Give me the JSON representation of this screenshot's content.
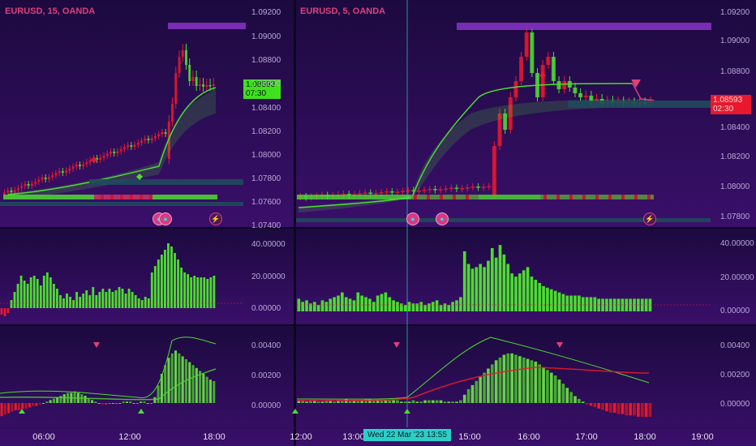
{
  "colors": {
    "background_top": "#1c0a3f",
    "background_bottom": "#3a0f6a",
    "bull": "#4cdc30",
    "bear": "#e8182e",
    "accent_pink": "#e0407a",
    "cursor": "#2ad0c8",
    "zone_purple": "#8a34c8",
    "zone_teal": "#1f4a5c"
  },
  "left_chart": {
    "title": "EURUSD, 15, OANDA",
    "price_label": "1.08593",
    "countdown": "07:30",
    "y_ticks": [
      "1.09200",
      "1.09000",
      "1.08800",
      "1.08600",
      "1.08400",
      "1.08200",
      "1.08000",
      "1.07800",
      "1.07600",
      "1.07400"
    ],
    "x_ticks": [
      "06:00",
      "12:00",
      "18:00"
    ],
    "volume_ticks": [
      "40.00000",
      "20.00000",
      "0.00000"
    ],
    "macd_ticks": [
      "0.00400",
      "0.00200",
      "0.00000"
    ],
    "volume_bars": [
      -4,
      -5,
      -3,
      5,
      10,
      15,
      20,
      17,
      15,
      19,
      20,
      18,
      14,
      20,
      22,
      19,
      15,
      12,
      8,
      6,
      9,
      7,
      5,
      10,
      7,
      9,
      11,
      8,
      13,
      8,
      10,
      12,
      10,
      12,
      10,
      11,
      13,
      12,
      9,
      12,
      10,
      8,
      6,
      5,
      7,
      6,
      22,
      26,
      30,
      33,
      36,
      40,
      38,
      34,
      30,
      25,
      22,
      21,
      19,
      20,
      19,
      19,
      19,
      18,
      19,
      20
    ],
    "macd_hist": [
      -0.0009,
      -0.0008,
      -0.0007,
      -0.0006,
      -0.0005,
      -0.0005,
      -0.0004,
      -0.0004,
      -0.0003,
      -0.0002,
      -0.0002,
      -0.0001,
      0.0,
      0.0001,
      0.0002,
      0.0003,
      0.0004,
      0.0005,
      0.0006,
      0.0007,
      0.0007,
      0.0008,
      0.0007,
      0.0006,
      0.0005,
      0.0003,
      0.0002,
      0.0001,
      0.0,
      -0.0001,
      -0.0001,
      0.0,
      0.0,
      0.0,
      0.0,
      0.0001,
      0.0001,
      0.0001,
      0.0,
      0.0,
      0.0001,
      0.0001,
      0.0,
      0.0,
      0.0004,
      0.0012,
      0.002,
      0.0026,
      0.0031,
      0.0034,
      0.0036,
      0.0034,
      0.0032,
      0.003,
      0.0028,
      0.0026,
      0.0024,
      0.0022,
      0.002,
      0.0018,
      0.0016,
      0.0015
    ]
  },
  "right_chart": {
    "title": "EURUSD, 5, OANDA",
    "price_label": "1.08593",
    "countdown": "02:30",
    "y_ticks": [
      "1.09200",
      "1.09000",
      "1.08800",
      "1.08600",
      "1.08400",
      "1.08200",
      "1.08000",
      "1.07800"
    ],
    "x_ticks": [
      "12:00",
      "13:00",
      "14:00",
      "15:00",
      "16:00",
      "17:00",
      "18:00",
      "19:00"
    ],
    "cursor_label": "Wed 22 Mar '23   13:55",
    "volume_ticks": [
      "40.00000",
      "20.00000",
      "0.00000"
    ],
    "macd_ticks": [
      "0.00400",
      "0.00200",
      "0.00000"
    ],
    "volume_bars": [
      8,
      6,
      7,
      5,
      6,
      4,
      7,
      6,
      8,
      9,
      10,
      12,
      9,
      8,
      7,
      12,
      10,
      9,
      8,
      6,
      10,
      11,
      12,
      9,
      7,
      6,
      5,
      4,
      6,
      5,
      5,
      6,
      4,
      5,
      6,
      7,
      4,
      5,
      4,
      6,
      7,
      9,
      38,
      30,
      27,
      28,
      30,
      28,
      32,
      40,
      34,
      42,
      36,
      30,
      24,
      22,
      24,
      26,
      28,
      22,
      20,
      18,
      16,
      15,
      14,
      13,
      12,
      11,
      10,
      10,
      10,
      10,
      9,
      9,
      9,
      9,
      8,
      8,
      8,
      8,
      8,
      8,
      8,
      8,
      8,
      8,
      8,
      8,
      8,
      8
    ],
    "macd_hist": [
      0.0002,
      0.0002,
      0.0001,
      0.0002,
      0.0002,
      0.0001,
      0.0001,
      0.0002,
      0.0002,
      0.0001,
      0.0002,
      0.0002,
      0.0003,
      0.0002,
      0.0002,
      0.0002,
      0.0002,
      0.0003,
      0.0003,
      0.0002,
      0.0002,
      0.0002,
      0.0002,
      0.0002,
      0.0002,
      0.0002,
      0.0001,
      0.0001,
      0.0001,
      0.0002,
      0.0001,
      0.0001,
      0.0002,
      0.0002,
      0.0002,
      0.0002,
      0.0002,
      0.0001,
      0.0001,
      0.0001,
      0.0001,
      0.0002,
      0.0006,
      0.001,
      0.0013,
      0.0016,
      0.0019,
      0.0022,
      0.0025,
      0.0028,
      0.0031,
      0.0033,
      0.0035,
      0.0036,
      0.0036,
      0.0035,
      0.0034,
      0.0033,
      0.0032,
      0.0031,
      0.003,
      0.0028,
      0.0026,
      0.0024,
      0.0022,
      0.002,
      0.0017,
      0.0014,
      0.0011,
      0.0008,
      0.0005,
      0.0003,
      0.0001,
      -0.0001,
      -0.0002,
      -0.0003,
      -0.0004,
      -0.0005,
      -0.0006,
      -0.0007,
      -0.0007,
      -0.0008,
      -0.0008,
      -0.0009,
      -0.0009,
      -0.0009,
      -0.001,
      -0.001,
      -0.001,
      -0.001
    ]
  }
}
